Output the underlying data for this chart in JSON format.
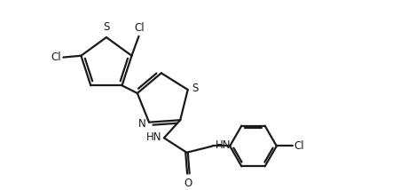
{
  "background_color": "#ffffff",
  "line_color": "#1a1a1a",
  "line_width": 1.6,
  "font_size": 8.5,
  "fig_width": 4.52,
  "fig_height": 2.14,
  "dpi": 100,
  "xlim": [
    0,
    10
  ],
  "ylim": [
    0,
    5.5
  ]
}
